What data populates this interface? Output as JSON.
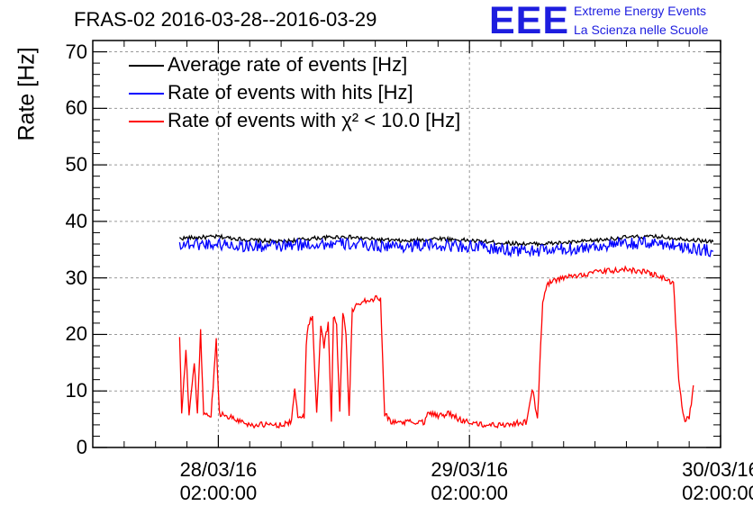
{
  "chart_data": {
    "type": "line",
    "title": "FRAS-02 2016-03-28--2016-03-29",
    "ylabel": "Rate [Hz]",
    "xlabel": "",
    "ylim": [
      0,
      72
    ],
    "xlim_hours": [
      -12,
      48
    ],
    "yticks": [
      0,
      10,
      20,
      30,
      40,
      50,
      60,
      70
    ],
    "xticks": [
      {
        "hour": 0,
        "date": "28/03/16",
        "time": "02:00:00"
      },
      {
        "hour": 24,
        "date": "29/03/16",
        "time": "02:00:00"
      },
      {
        "hour": 48,
        "date": "30/03/16",
        "time": "02:00:00"
      }
    ],
    "grid": true,
    "legend_position": "top-left",
    "series": [
      {
        "name": "Average rate of events [Hz]",
        "color": "#000000",
        "points": [
          [
            -3.7,
            37
          ],
          [
            0,
            37.3
          ],
          [
            3,
            36.7
          ],
          [
            6,
            36.4
          ],
          [
            9,
            37.0
          ],
          [
            12,
            37.3
          ],
          [
            15,
            36.8
          ],
          [
            18,
            36.5
          ],
          [
            21,
            37.0
          ],
          [
            24,
            36.6
          ],
          [
            27,
            36.2
          ],
          [
            30,
            36.0
          ],
          [
            33,
            36.2
          ],
          [
            36,
            36.6
          ],
          [
            39,
            37.2
          ],
          [
            42,
            37.3
          ],
          [
            45,
            36.8
          ],
          [
            47.3,
            36.4
          ]
        ]
      },
      {
        "name": "Rate of events with hits [Hz]",
        "color": "#0000ff",
        "points": [
          [
            -3.7,
            36
          ],
          [
            0,
            36
          ],
          [
            3,
            35.6
          ],
          [
            6,
            35.6
          ],
          [
            9,
            36
          ],
          [
            12,
            36
          ],
          [
            15,
            35.7
          ],
          [
            18,
            35.6
          ],
          [
            21,
            35.8
          ],
          [
            24,
            35.6
          ],
          [
            27,
            35
          ],
          [
            30,
            34.8
          ],
          [
            33,
            35
          ],
          [
            36,
            35.6
          ],
          [
            39,
            36
          ],
          [
            42,
            36.2
          ],
          [
            45,
            35.4
          ],
          [
            47.3,
            34.7
          ]
        ]
      },
      {
        "name": "Rate of events with χ² < 10.0 [Hz]",
        "color": "#ff0000",
        "points": [
          [
            -3.7,
            19.5
          ],
          [
            -3.5,
            6
          ],
          [
            -3.1,
            17
          ],
          [
            -2.8,
            6
          ],
          [
            -2.3,
            15
          ],
          [
            -2.0,
            6
          ],
          [
            -1.7,
            20.5
          ],
          [
            -1.4,
            6
          ],
          [
            -0.7,
            5.5
          ],
          [
            -0.2,
            19
          ],
          [
            0.1,
            6
          ],
          [
            1,
            5.5
          ],
          [
            3,
            4
          ],
          [
            6,
            4
          ],
          [
            7,
            4.5
          ],
          [
            7.3,
            10.5
          ],
          [
            7.6,
            5.5
          ],
          [
            8.2,
            5.5
          ],
          [
            8.4,
            18
          ],
          [
            8.6,
            22
          ],
          [
            9.0,
            23
          ],
          [
            9.4,
            6
          ],
          [
            9.8,
            22
          ],
          [
            10.1,
            18
          ],
          [
            10.5,
            22
          ],
          [
            10.8,
            5
          ],
          [
            11.0,
            23
          ],
          [
            11.3,
            22
          ],
          [
            11.6,
            6
          ],
          [
            11.9,
            24
          ],
          [
            12.2,
            20
          ],
          [
            12.5,
            6
          ],
          [
            12.8,
            24
          ],
          [
            13.3,
            25.5
          ],
          [
            14,
            26
          ],
          [
            15.5,
            26.5
          ],
          [
            15.9,
            6
          ],
          [
            16.5,
            4.5
          ],
          [
            18,
            4.5
          ],
          [
            19.7,
            4.5
          ],
          [
            20,
            6.5
          ],
          [
            21,
            5.5
          ],
          [
            22,
            6
          ],
          [
            23,
            5
          ],
          [
            25,
            4
          ],
          [
            27,
            4
          ],
          [
            29.5,
            4.5
          ],
          [
            30,
            10.5
          ],
          [
            30.5,
            5
          ],
          [
            31,
            26
          ],
          [
            31.5,
            29
          ],
          [
            33,
            30
          ],
          [
            36,
            31
          ],
          [
            39,
            31.5
          ],
          [
            41,
            31
          ],
          [
            42.5,
            30
          ],
          [
            43.5,
            29
          ],
          [
            44,
            12
          ],
          [
            44.5,
            5
          ],
          [
            45,
            5
          ],
          [
            45.4,
            11
          ]
        ]
      }
    ]
  }
}
